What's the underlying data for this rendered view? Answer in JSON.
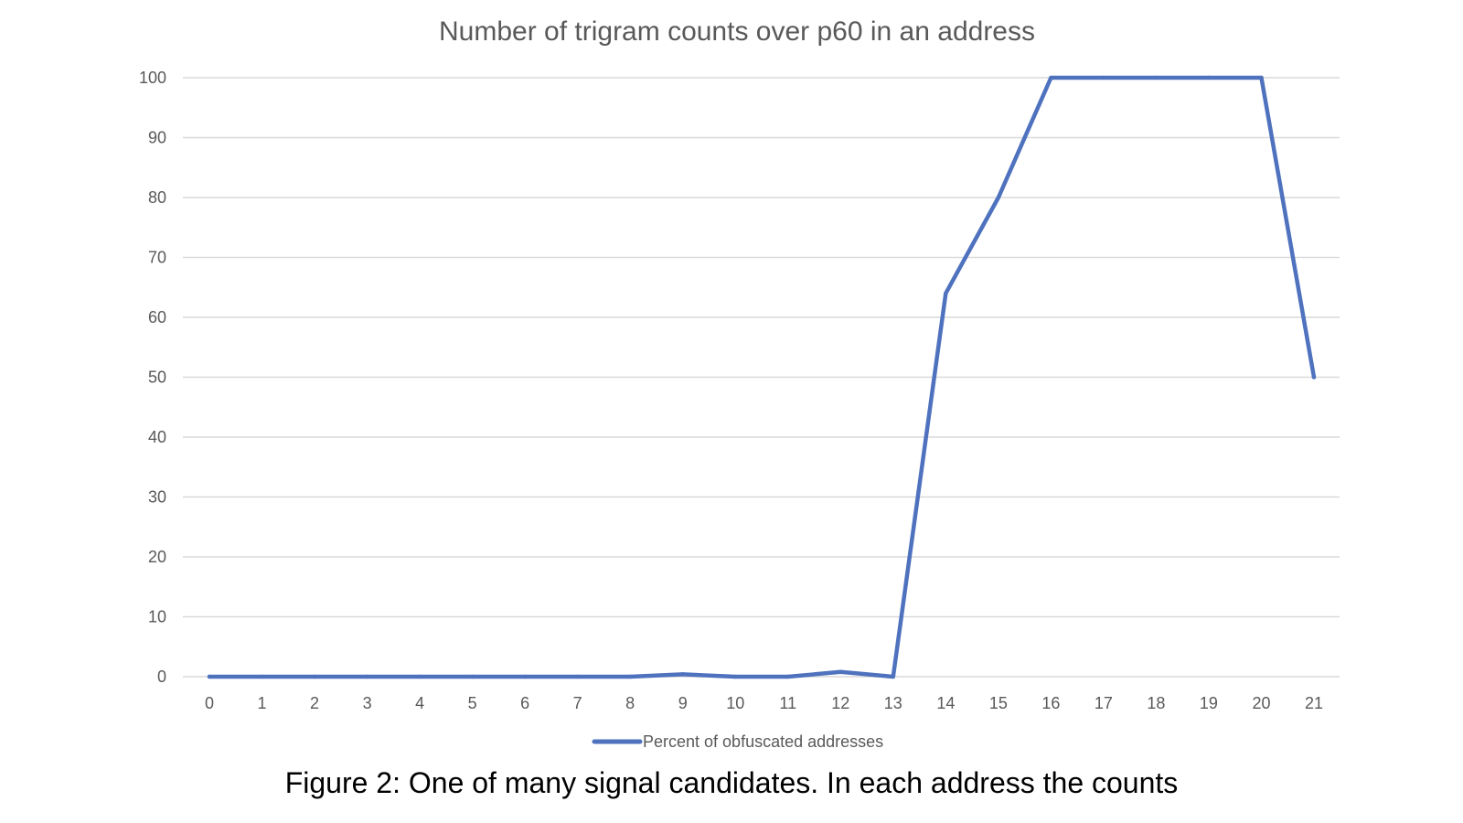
{
  "chart_data": {
    "type": "line",
    "title": "Number of trigram counts over p60 in an address",
    "xlabel": "",
    "ylabel": "",
    "x": [
      0,
      1,
      2,
      3,
      4,
      5,
      6,
      7,
      8,
      9,
      10,
      11,
      12,
      13,
      14,
      15,
      16,
      17,
      18,
      19,
      20,
      21
    ],
    "series": [
      {
        "name": "Percent of obfuscated addresses",
        "color": "#4f72be",
        "values": [
          0,
          0,
          0,
          0,
          0,
          0,
          0,
          0,
          0,
          0.4,
          0,
          0,
          0.8,
          0,
          64,
          80,
          100,
          100,
          100,
          100,
          100,
          50
        ]
      }
    ],
    "ylim": [
      0,
      100
    ],
    "yticks": [
      0,
      10,
      20,
      30,
      40,
      50,
      60,
      70,
      80,
      90,
      100
    ],
    "grid": true,
    "grid_color": "#d9d9d9",
    "legend_position": "bottom"
  },
  "caption": "Figure 2: One of many signal candidates. In each address the counts"
}
